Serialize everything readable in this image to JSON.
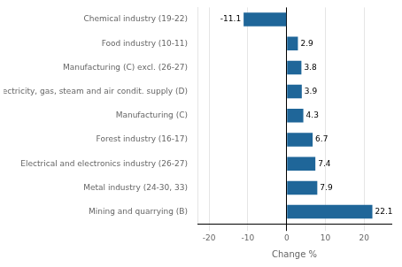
{
  "chart_data": {
    "type": "bar",
    "orientation": "horizontal",
    "x_label": "Change %",
    "categories": [
      "Chemical industry (19-22)",
      "Food industry (10-11)",
      "Manufacturing (C) excl. (26-27)",
      "Electricity, gas, steam and air condit. supply (D)",
      "Manufacturing (C)",
      "Forest industry (16-17)",
      "Electrical and electronics industry (26-27)",
      "Metal industry (24-30, 33)",
      "Mining and quarrying (B)"
    ],
    "values": [
      -11.1,
      2.9,
      3.8,
      3.9,
      4.3,
      6.7,
      7.4,
      7.9,
      22.1
    ],
    "color": "#1f6699",
    "xlim": [
      -23,
      27
    ],
    "xticks": [
      -20,
      -10,
      0,
      10,
      20
    ],
    "grid": true,
    "data_labels": true
  }
}
